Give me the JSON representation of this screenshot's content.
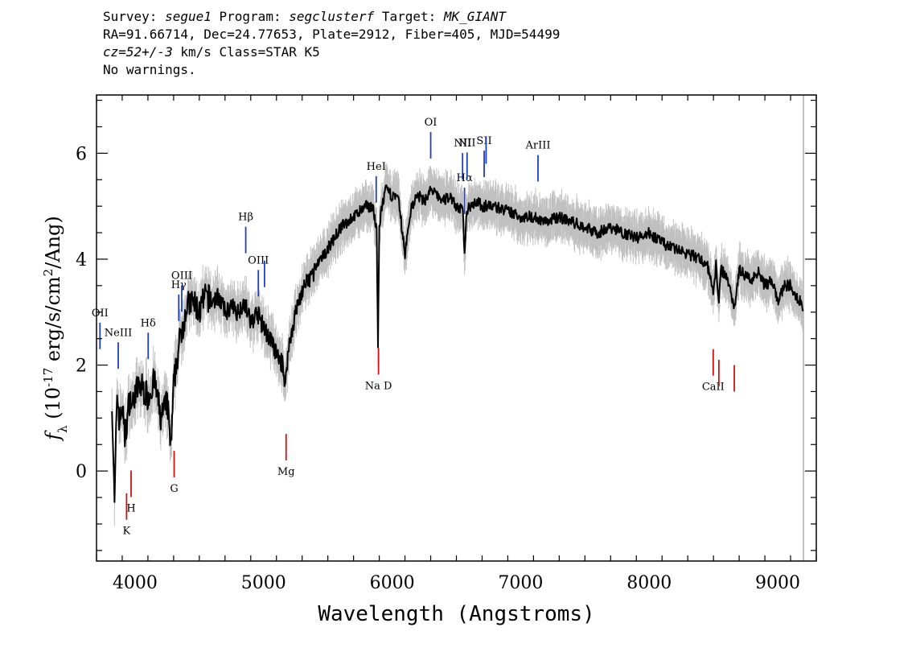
{
  "header": {
    "survey_label": "Survey:",
    "survey": "segue1",
    "program_label": "Program:",
    "program": "segclusterf",
    "target_label": "Target:",
    "target": "MK_GIANT",
    "coords": "RA=91.66714, Dec=24.77653, Plate=2912, Fiber=405, MJD=54499",
    "cz": "cz=52+/-3",
    "cz_units": " km/s Class=STAR K5",
    "warnings": "No warnings."
  },
  "chart_data": {
    "type": "line",
    "xlabel": "Wavelength (Angstroms)",
    "ylabel": "f_λ (10^-17 erg/s/cm^2/Ang)",
    "xlim": [
      3700,
      9300
    ],
    "ylim": [
      -1.7,
      7.1
    ],
    "x_ticks": [
      4000,
      5000,
      6000,
      7000,
      8000,
      9000
    ],
    "y_ticks": [
      0,
      2,
      4,
      6
    ],
    "colors": {
      "flux": "#000000",
      "error": "#c0c0c0",
      "emission": "#1f3fbf",
      "absorption": "#d01010"
    },
    "series": [
      {
        "x": [
          3820,
          3840,
          3860,
          3880,
          3900,
          3920,
          3940,
          3960,
          3980,
          4000,
          4050,
          4100,
          4150,
          4200,
          4250,
          4280,
          4300,
          4320,
          4350,
          4400,
          4450,
          4500,
          4550,
          4600,
          4650,
          4700,
          4750,
          4800,
          4850,
          4900,
          4950,
          5000,
          5050,
          5100,
          5150,
          5170,
          5180,
          5200,
          5250,
          5300,
          5350,
          5400,
          5450,
          5500,
          5550,
          5600,
          5650,
          5700,
          5750,
          5800,
          5850,
          5880,
          5890,
          5900,
          5920,
          5950,
          6000,
          6050,
          6100,
          6150,
          6200,
          6250,
          6300,
          6350,
          6400,
          6450,
          6500,
          6550,
          6563,
          6580,
          6600,
          6650,
          6700,
          6800,
          6900,
          7000,
          7100,
          7200,
          7300,
          7400,
          7500,
          7600,
          7700,
          7800,
          7900,
          8000,
          8100,
          8200,
          8300,
          8400,
          8450,
          8498,
          8520,
          8542,
          8560,
          8600,
          8662,
          8700,
          8750,
          8800,
          8850,
          8900,
          8950,
          9000,
          9050,
          9100,
          9150,
          9200
        ],
        "y": [
          1.4,
          -0.7,
          1.5,
          0.9,
          1.3,
          0.6,
          1.0,
          1.4,
          1.2,
          1.5,
          1.6,
          1.4,
          1.7,
          1.0,
          1.3,
          0.4,
          1.6,
          2.0,
          2.5,
          3.1,
          3.2,
          3.0,
          3.3,
          3.2,
          3.3,
          3.0,
          3.1,
          3.0,
          3.2,
          2.8,
          3.0,
          2.7,
          2.5,
          2.2,
          2.0,
          1.6,
          2.0,
          2.4,
          3.0,
          3.4,
          3.6,
          3.8,
          4.0,
          4.2,
          4.4,
          4.6,
          4.7,
          4.8,
          4.9,
          5.0,
          5.0,
          4.5,
          2.3,
          4.6,
          5.0,
          5.3,
          5.2,
          5.1,
          4.1,
          5.0,
          5.2,
          5.1,
          5.3,
          5.2,
          5.1,
          5.2,
          5.0,
          4.9,
          4.1,
          4.9,
          5.0,
          5.1,
          5.0,
          5.0,
          4.9,
          4.8,
          4.8,
          4.7,
          4.8,
          4.7,
          4.6,
          4.5,
          4.6,
          4.5,
          4.4,
          4.5,
          4.3,
          4.2,
          4.1,
          4.0,
          3.9,
          3.4,
          3.9,
          3.2,
          3.8,
          3.7,
          3.1,
          3.8,
          3.7,
          3.6,
          3.8,
          3.5,
          3.6,
          3.2,
          3.5,
          3.5,
          3.3,
          3.1
        ]
      }
    ],
    "emission_lines": [
      {
        "label": "OII",
        "x": 3727
      },
      {
        "label": "NeIII",
        "x": 3869
      },
      {
        "label": "Hδ",
        "x": 4102
      },
      {
        "label": "Hγ",
        "x": 4340
      },
      {
        "label": "OIII",
        "x": 4363
      },
      {
        "label": "Hβ",
        "x": 4861
      },
      {
        "label": "OIII",
        "x": 4959
      },
      {
        "label": "",
        "x": 5007
      },
      {
        "label": "HeI",
        "x": 5876
      },
      {
        "label": "OI",
        "x": 6300
      },
      {
        "label": "NII",
        "x": 6548
      },
      {
        "label": "Hα",
        "x": 6563
      },
      {
        "label": "NII",
        "x": 6583
      },
      {
        "label": "SII",
        "x": 6716
      },
      {
        "label": "",
        "x": 6731
      },
      {
        "label": "ArIII",
        "x": 7135
      }
    ],
    "absorption_lines": [
      {
        "label": "K",
        "x": 3934
      },
      {
        "label": "H",
        "x": 3969
      },
      {
        "label": "G",
        "x": 4304
      },
      {
        "label": "Mg",
        "x": 5175
      },
      {
        "label": "Na D",
        "x": 5894
      },
      {
        "label": "CaII",
        "x": 8498
      },
      {
        "label": "",
        "x": 8542
      },
      {
        "label": "",
        "x": 8662
      }
    ]
  }
}
